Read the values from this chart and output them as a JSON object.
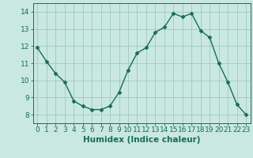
{
  "x": [
    0,
    1,
    2,
    3,
    4,
    5,
    6,
    7,
    8,
    9,
    10,
    11,
    12,
    13,
    14,
    15,
    16,
    17,
    18,
    19,
    20,
    21,
    22,
    23
  ],
  "y": [
    11.9,
    11.1,
    10.4,
    9.9,
    8.8,
    8.5,
    8.3,
    8.3,
    8.5,
    9.3,
    10.6,
    11.6,
    11.9,
    12.8,
    13.1,
    13.9,
    13.7,
    13.9,
    12.9,
    12.5,
    11.0,
    9.9,
    8.6,
    8.0
  ],
  "line_color": "#1a6b5a",
  "marker": "D",
  "marker_size": 2.5,
  "bg_color": "#c8e8e0",
  "grid_color": "#a0c8c0",
  "xlabel": "Humidex (Indice chaleur)",
  "xlabel_color": "#1a6b5a",
  "tick_color": "#1a6b5a",
  "ylim": [
    7.5,
    14.5
  ],
  "xlim": [
    -0.5,
    23.5
  ],
  "yticks": [
    8,
    9,
    10,
    11,
    12,
    13,
    14
  ],
  "xticks": [
    0,
    1,
    2,
    3,
    4,
    5,
    6,
    7,
    8,
    9,
    10,
    11,
    12,
    13,
    14,
    15,
    16,
    17,
    18,
    19,
    20,
    21,
    22,
    23
  ],
  "xlabel_fontsize": 7.5,
  "tick_fontsize": 6.5,
  "linewidth": 1.0
}
